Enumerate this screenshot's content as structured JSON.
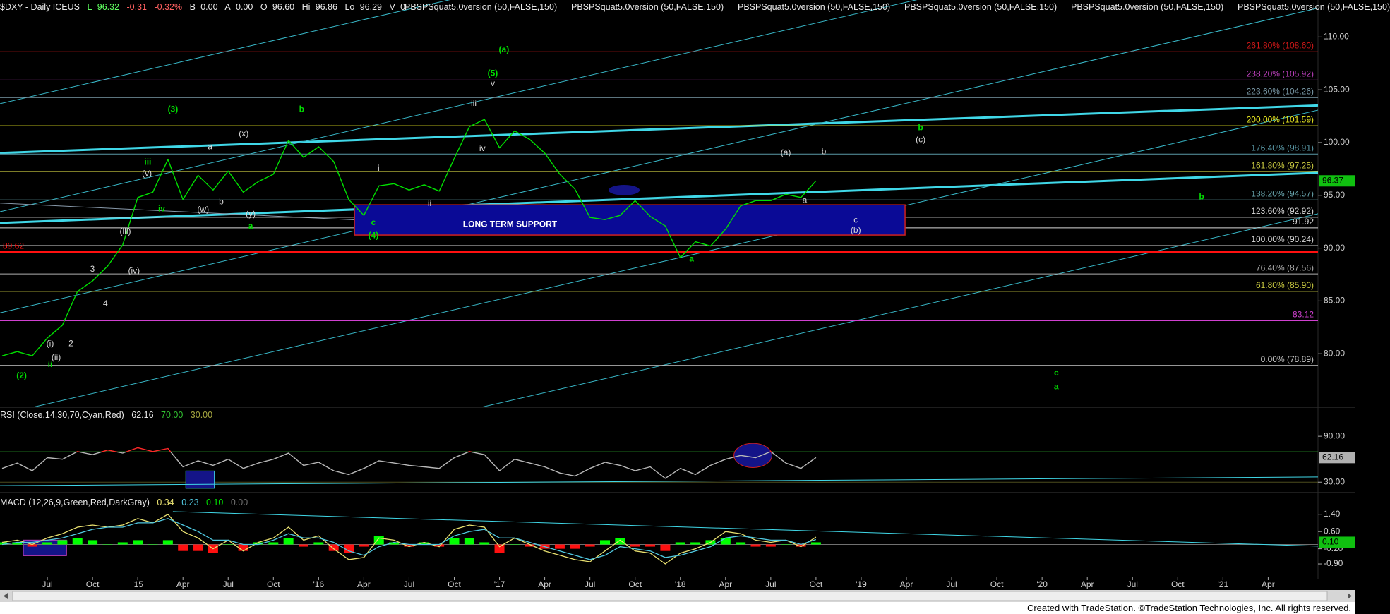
{
  "header": {
    "symbol": "$DXY - Daily ICEUS",
    "last": "L=96.32",
    "change": "-0.31",
    "change_pct": "-0.32%",
    "bid": "B=0.00",
    "ask": "A=0.00",
    "open": "O=96.60",
    "high": "Hi=96.86",
    "low": "Lo=96.29",
    "volume": "V=0",
    "studies": [
      "PBSPSquat5.0version (50,FALSE,150)",
      "PBSPSquat5.0version (50,FALSE,150)",
      "PBSPSquat5.0version (50,FALSE,150)",
      "PBSPSquat5.0version (50,FALSE,150)",
      "PBSPSquat5.0version (50,FALSE,150)",
      "PBSPSquat5.0version (50,FALSE,150)"
    ]
  },
  "chart_data": [
    {
      "type": "line",
      "color": "#00e000",
      "values": [
        79.8,
        80.2,
        79.8,
        81.5,
        82.7,
        85.9,
        86.9,
        88.3,
        90.3,
        94.8,
        95.3,
        98.4,
        94.6,
        96.9,
        95.5,
        97.3,
        95.3,
        96.3,
        97.0,
        100.2,
        98.6,
        99.6,
        98.2,
        94.6,
        93.1,
        95.9,
        96.1,
        95.5,
        96.0,
        95.4,
        98.5,
        101.5,
        102.2,
        99.5,
        101.1,
        100.3,
        99.0,
        97.0,
        95.6,
        92.9,
        92.7,
        93.1,
        94.5,
        93.0,
        92.1,
        89.1,
        90.6,
        90.2,
        91.8,
        94.0,
        94.5,
        94.5,
        95.1,
        94.8,
        96.37,
        null,
        null,
        null,
        null,
        null,
        null,
        null,
        null,
        null,
        null,
        null,
        null,
        null,
        null,
        null,
        null,
        null,
        null,
        null,
        null,
        null,
        null,
        null,
        null,
        null,
        null,
        null,
        null,
        null,
        null,
        null,
        null,
        null
      ],
      "ylim": [
        75,
        113.5
      ],
      "yticks": [
        {
          "value": 80,
          "label": "80.00"
        },
        {
          "value": 85,
          "label": "85.00"
        },
        {
          "value": 90,
          "label": "90.00"
        },
        {
          "value": 95,
          "label": "95.00"
        },
        {
          "value": 100,
          "label": "100.00"
        },
        {
          "value": 105,
          "label": "105.00"
        },
        {
          "value": 110,
          "label": "110.00"
        }
      ],
      "levels": [
        {
          "value": 108.6,
          "label": "261.80% (108.60)",
          "color": "#d01818"
        },
        {
          "value": 105.92,
          "label": "238.20% (105.92)",
          "color": "#c040c0"
        },
        {
          "value": 104.26,
          "label": "223.60% (104.26)",
          "color": "#7a9aa8"
        },
        {
          "value": 101.59,
          "label": "200.00% (101.59)",
          "color": "#e8e820"
        },
        {
          "value": 98.91,
          "label": "176.40% (98.91)",
          "color": "#5a9aa8"
        },
        {
          "value": 97.25,
          "label": "161.80% (97.25)",
          "color": "#c8c840"
        },
        {
          "value": 94.57,
          "label": "138.20% (94.57)",
          "color": "#6aa8b0"
        },
        {
          "value": 92.92,
          "label": "123.60% (92.92)",
          "color": "#d8d8d8"
        },
        {
          "value": 91.92,
          "label": "91.92",
          "color": "#d8d8d8"
        },
        {
          "value": 90.24,
          "label": "100.00% (90.24)",
          "color": "#d8d8d8"
        },
        {
          "value": 89.62,
          "label": "89.62",
          "color": "#ff1010",
          "side": "left"
        },
        {
          "value": 87.56,
          "label": "76.40% (87.56)",
          "color": "#b0b0b0"
        },
        {
          "value": 85.9,
          "label": "61.80% (85.90)",
          "color": "#c8c840"
        },
        {
          "value": 83.12,
          "label": "83.12",
          "color": "#d040d0"
        },
        {
          "value": 78.89,
          "label": "0.00% (78.89)",
          "color": "#c8c8c8"
        }
      ],
      "support_label": "LONG TERM SUPPORT",
      "annotations": [
        {
          "text": "(a)",
          "color": "#00dd00"
        },
        {
          "text": "(5)",
          "color": "#00dd00"
        },
        {
          "text": "v",
          "color": "#d8d8d8"
        },
        {
          "text": "(3)",
          "color": "#00dd00"
        },
        {
          "text": "b",
          "color": "#00dd00"
        },
        {
          "text": "iii",
          "color": "#00dd00"
        },
        {
          "text": "iv",
          "color": "#00dd00"
        },
        {
          "text": "a",
          "color": "#00dd00"
        },
        {
          "text": "(2)",
          "color": "#00dd00"
        },
        {
          "text": "ii",
          "color": "#00dd00"
        },
        {
          "text": "c",
          "color": "#00dd00"
        },
        {
          "text": "(4)",
          "color": "#00dd00"
        },
        {
          "text": "a",
          "color": "#00dd00"
        },
        {
          "text": "b",
          "color": "#00dd00"
        },
        {
          "text": "(c)",
          "color": "#d8d8d8"
        },
        {
          "text": "b",
          "color": "#00dd00"
        },
        {
          "text": "c",
          "color": "#00dd00"
        },
        {
          "text": "a",
          "color": "#00dd00"
        },
        {
          "text": "(a)",
          "color": "#d8d8d8"
        },
        {
          "text": "b",
          "color": "#d8d8d8"
        },
        {
          "text": "a",
          "color": "#d8d8d8"
        },
        {
          "text": "c",
          "color": "#d8d8d8"
        },
        {
          "text": "(b)",
          "color": "#d8d8d8"
        },
        {
          "text": "iii",
          "color": "#d8d8d8"
        },
        {
          "text": "iv",
          "color": "#d8d8d8"
        },
        {
          "text": "3",
          "color": "#d8d8d8"
        },
        {
          "text": "4",
          "color": "#d8d8d8"
        },
        {
          "text": "2",
          "color": "#d8d8d8"
        },
        {
          "text": "(iv)",
          "color": "#d8d8d8"
        },
        {
          "text": "(i)",
          "color": "#d8d8d8"
        },
        {
          "text": "(ii)",
          "color": "#d8d8d8"
        },
        {
          "text": "(iii)",
          "color": "#d8d8d8"
        },
        {
          "text": "(v)",
          "color": "#d8d8d8"
        },
        {
          "text": "(w)",
          "color": "#d8d8d8"
        },
        {
          "text": "(x)",
          "color": "#d8d8d8"
        },
        {
          "text": "(y)",
          "color": "#d8d8d8"
        },
        {
          "text": "a",
          "color": "#d8d8d8"
        },
        {
          "text": "b",
          "color": "#d8d8d8"
        },
        {
          "text": "i",
          "color": "#d8d8d8"
        },
        {
          "text": "ii",
          "color": "#d8d8d8"
        }
      ]
    },
    {
      "type": "line",
      "title": "RSI (Close,14,30,70,Cyan,Red)",
      "color": "#b8b8b8",
      "overbought_color": "#ff2828",
      "oversold_color": "#00e0e0",
      "values": [
        48,
        55,
        45,
        62,
        60,
        70,
        66,
        72,
        68,
        75,
        70,
        74,
        50,
        58,
        52,
        60,
        48,
        55,
        60,
        68,
        52,
        56,
        45,
        40,
        48,
        58,
        55,
        52,
        50,
        48,
        62,
        70,
        66,
        45,
        60,
        55,
        50,
        42,
        38,
        48,
        56,
        52,
        45,
        50,
        35,
        48,
        40,
        52,
        60,
        65,
        62,
        70,
        55,
        48,
        62.16,
        null,
        null,
        null,
        null,
        null,
        null,
        null,
        null,
        null,
        null,
        null,
        null,
        null,
        null,
        null,
        null,
        null,
        null,
        null,
        null,
        null,
        null,
        null,
        null,
        null,
        null,
        null,
        null,
        null,
        null,
        null,
        null,
        null
      ],
      "ylim": [
        21,
        127
      ],
      "yticks": [
        {
          "value": 90,
          "label": "90.00"
        },
        {
          "value": 30,
          "label": "30.00"
        }
      ],
      "levels": [
        {
          "value": 70,
          "label": "70.00",
          "color": "#30c030"
        },
        {
          "value": 30,
          "label": "30.00",
          "color": "#a8a840"
        }
      ]
    },
    {
      "type": "macd",
      "title": "MACD (12,26,9,Green,Red,DarkGray)",
      "categories": [
        null,
        null,
        null,
        "Jul",
        null,
        null,
        "Oct",
        null,
        null,
        "'15",
        null,
        null,
        "Apr",
        null,
        null,
        "Jul",
        null,
        null,
        "Oct",
        null,
        null,
        "'16",
        null,
        null,
        "Apr",
        null,
        null,
        "Jul",
        null,
        null,
        "Oct",
        null,
        null,
        "'17",
        null,
        null,
        "Apr",
        null,
        null,
        "Jul",
        null,
        null,
        "Oct",
        null,
        null,
        "'18",
        null,
        null,
        "Apr",
        null,
        null,
        "Jul",
        null,
        null,
        "Oct",
        null,
        null,
        "'19",
        null,
        null,
        "Apr",
        null,
        null,
        "Jul",
        null,
        null,
        "Oct",
        null,
        null,
        "'20",
        null,
        null,
        "Apr",
        null,
        null,
        "Jul",
        null,
        null,
        "Oct",
        null,
        null,
        "'21",
        null,
        null,
        "Apr",
        null,
        null,
        null
      ],
      "series": [
        {
          "color": "#e8e070",
          "values": [
            0.1,
            0.2,
            0.0,
            0.3,
            0.5,
            0.8,
            0.9,
            0.8,
            0.9,
            1.2,
            1.0,
            1.4,
            0.6,
            0.3,
            -0.2,
            0.2,
            -0.3,
            0.1,
            0.3,
            0.8,
            0.2,
            0.4,
            -0.2,
            -0.7,
            -0.6,
            0.3,
            0.2,
            -0.1,
            0.1,
            -0.1,
            0.7,
            0.9,
            0.8,
            -0.1,
            0.3,
            0.0,
            -0.3,
            -0.5,
            -0.7,
            -0.8,
            -0.3,
            0.2,
            -0.3,
            -0.4,
            -0.9,
            -0.4,
            -0.2,
            0.1,
            0.6,
            0.5,
            0.2,
            0.1,
            0.2,
            -0.1,
            0.34,
            null,
            null,
            null,
            null,
            null,
            null,
            null,
            null,
            null,
            null,
            null,
            null,
            null,
            null,
            null,
            null,
            null,
            null,
            null,
            null,
            null,
            null,
            null,
            null,
            null,
            null,
            null,
            null,
            null,
            null,
            null,
            null,
            null
          ]
        },
        {
          "color": "#50c8e0",
          "values": [
            0.0,
            0.1,
            0.1,
            0.2,
            0.3,
            0.5,
            0.7,
            0.8,
            0.8,
            1.0,
            1.0,
            1.2,
            0.9,
            0.6,
            0.2,
            0.2,
            0.0,
            0.0,
            0.2,
            0.5,
            0.3,
            0.3,
            0.1,
            -0.3,
            -0.5,
            -0.1,
            0.1,
            0.0,
            0.0,
            0.0,
            0.4,
            0.6,
            0.7,
            0.3,
            0.3,
            0.1,
            -0.1,
            -0.3,
            -0.5,
            -0.7,
            -0.5,
            -0.1,
            -0.2,
            -0.3,
            -0.6,
            -0.5,
            -0.3,
            -0.1,
            0.3,
            0.4,
            0.3,
            0.2,
            0.2,
            0.0,
            0.23,
            null,
            null,
            null,
            null,
            null,
            null,
            null,
            null,
            null,
            null,
            null,
            null,
            null,
            null,
            null,
            null,
            null,
            null,
            null,
            null,
            null,
            null,
            null,
            null,
            null,
            null,
            null,
            null,
            null,
            null,
            null,
            null,
            null
          ]
        }
      ],
      "histogram": {
        "up_color": "#00ff00",
        "down_color": "#ff1010",
        "readout": "0.10",
        "values": [
          0.1,
          0.1,
          -0.1,
          0.1,
          0.2,
          0.3,
          0.2,
          0.0,
          0.1,
          0.2,
          0.0,
          0.2,
          -0.3,
          -0.3,
          -0.4,
          0.0,
          -0.3,
          0.1,
          0.1,
          0.3,
          -0.1,
          0.1,
          -0.3,
          -0.4,
          -0.1,
          0.4,
          0.1,
          -0.1,
          0.1,
          -0.1,
          0.3,
          0.3,
          0.1,
          -0.4,
          0.0,
          -0.1,
          -0.2,
          -0.2,
          -0.2,
          -0.1,
          0.2,
          0.3,
          -0.1,
          -0.1,
          -0.3,
          0.1,
          0.1,
          0.2,
          0.3,
          0.1,
          -0.1,
          -0.1,
          0.0,
          -0.1,
          0.1,
          null,
          null,
          null,
          null,
          null,
          null,
          null,
          null,
          null,
          null,
          null,
          null,
          null,
          null,
          null,
          null,
          null,
          null,
          null,
          null,
          null,
          null,
          null,
          null,
          null,
          null,
          null,
          null,
          null,
          null,
          null,
          null,
          null
        ]
      },
      "zero_line": {
        "value": 0,
        "label": "0.00",
        "color": "#707070"
      },
      "ylim": [
        -1.52,
        2.24
      ],
      "yticks": [
        {
          "value": 1.4,
          "label": "1.40"
        },
        {
          "value": 0.6,
          "label": "0.60"
        },
        {
          "value": -0.2,
          "label": "-0.20"
        },
        {
          "value": -0.9,
          "label": "-0.90"
        }
      ]
    }
  ],
  "footer": "Created with TradeStation. ©TradeStation Technologies, Inc. All rights reserved."
}
